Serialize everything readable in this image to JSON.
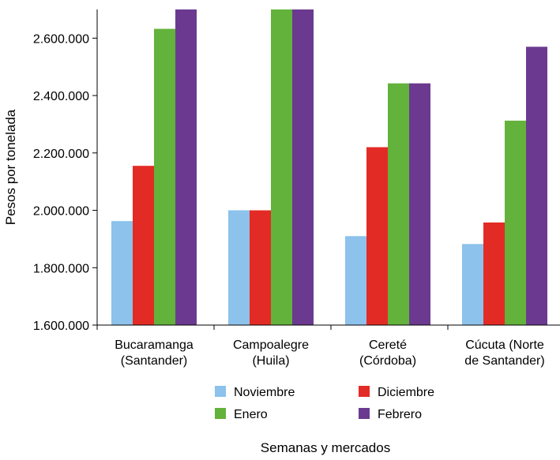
{
  "chart_data": {
    "type": "bar",
    "title": "",
    "xlabel": "Semanas y mercados",
    "ylabel": "Pesos por tonelada",
    "ylim": [
      1600000,
      2700000
    ],
    "yticks": [
      1600000,
      1800000,
      2000000,
      2200000,
      2400000,
      2600000
    ],
    "ytick_labels": [
      "1.600.000",
      "1.800.000",
      "2.000.000",
      "2.200.000",
      "2.400.000",
      "2.600.000"
    ],
    "categories": [
      [
        "Bucaramanga",
        "(Santander)"
      ],
      [
        "Campoalegre",
        "(Huila)"
      ],
      [
        "Cereté",
        "(Córdoba)"
      ],
      [
        "Cúcuta (Norte",
        "de Santander)"
      ]
    ],
    "series": [
      {
        "name": "Noviembre",
        "color": "#8CC2EB",
        "values": [
          1962500,
          2000000,
          1910000,
          1882500
        ]
      },
      {
        "name": "Diciembre",
        "color": "#E32B25",
        "values": [
          2155000,
          2000000,
          2220000,
          1957500
        ]
      },
      {
        "name": "Enero",
        "color": "#63B23B",
        "values": [
          2632500,
          2700000,
          2442500,
          2312500
        ]
      },
      {
        "name": "Febrero",
        "color": "#6B3A90",
        "values": [
          2700000,
          2700000,
          2442500,
          2570000
        ]
      }
    ],
    "legend_position": "bottom",
    "grid": false
  }
}
